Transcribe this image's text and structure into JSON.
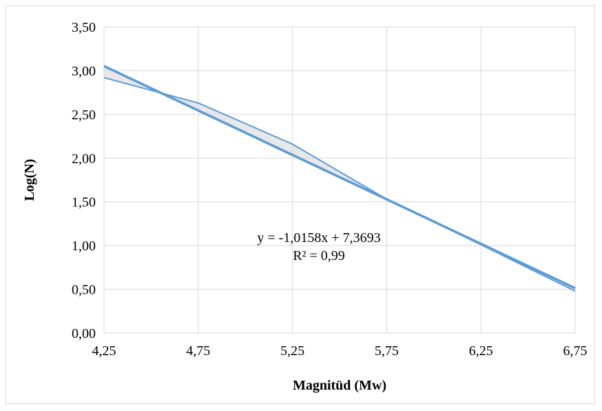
{
  "chart_data": {
    "type": "line",
    "title": "",
    "xlabel": "Magnitüd (Mw)",
    "ylabel": "Log(N)",
    "xlim": [
      4.25,
      6.75
    ],
    "ylim": [
      0,
      3.5
    ],
    "x_ticks": [
      "4,25",
      "4,75",
      "5,25",
      "5,75",
      "6,25",
      "6,75"
    ],
    "y_ticks": [
      "0,00",
      "0,50",
      "1,00",
      "1,50",
      "2,00",
      "2,50",
      "3,00",
      "3,50"
    ],
    "grid": true,
    "legend": "none",
    "series": [
      {
        "x": [
          4.25,
          4.75,
          5.25,
          5.75,
          6.25,
          6.75
        ],
        "y": [
          2.92,
          2.63,
          2.16,
          1.53,
          1.01,
          0.48
        ]
      }
    ],
    "trendline": {
      "type": "linear",
      "slope": -1.0158,
      "intercept": 7.3693,
      "equation": "y = -1,0158x + 7,3693",
      "r_squared": "R² = 0,99"
    },
    "colors": {
      "series": "#5b9bd5",
      "grid": "#d9d9d9"
    }
  }
}
